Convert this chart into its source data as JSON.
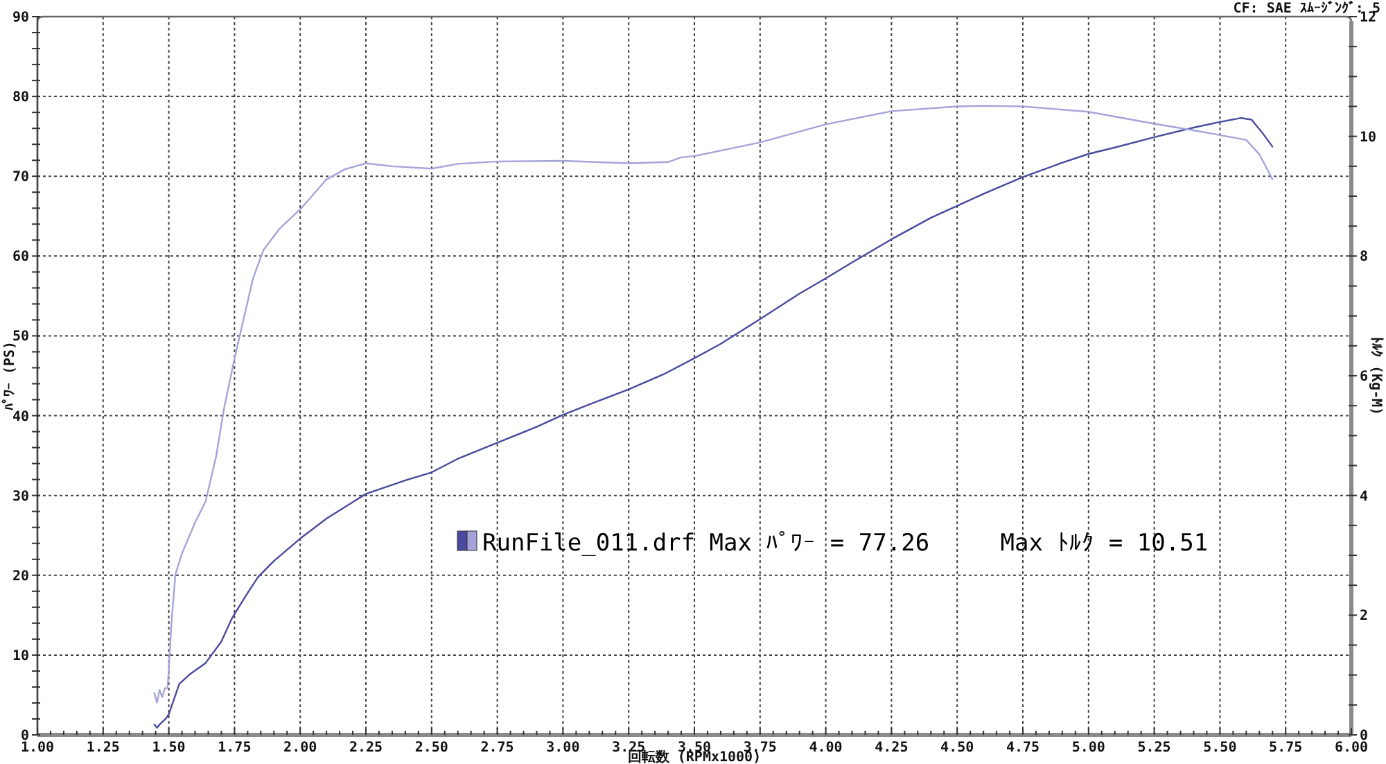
{
  "chart_data": {
    "type": "line",
    "annotations": [
      "CF: SAE ｽﾑｰｼﾞﾝｸﾞ: 5",
      "RunFile_011.drf Max ﾊﾟﾜｰ = 77.26     Max ﾄﾙｸ = 10.51"
    ],
    "xlabel": "回転数 (RPMx1000)",
    "ylabel": "ﾊﾟﾜｰ (PS)",
    "y2label": "ﾄﾙｸ (Kg-M)",
    "xlim": [
      1,
      6
    ],
    "ylim": [
      0,
      90
    ],
    "y2lim": [
      0,
      12
    ],
    "xticks": [
      {
        "value": 1,
        "label": "1.00"
      },
      {
        "value": 1.05,
        "label": null
      },
      {
        "value": 1.1,
        "label": null
      },
      {
        "value": 1.15,
        "label": null
      },
      {
        "value": 1.2,
        "label": null
      },
      {
        "value": 1.25,
        "label": "1.25"
      },
      {
        "value": 1.3,
        "label": null
      },
      {
        "value": 1.35,
        "label": null
      },
      {
        "value": 1.4,
        "label": null
      },
      {
        "value": 1.45,
        "label": null
      },
      {
        "value": 1.5,
        "label": "1.50"
      },
      {
        "value": 1.55,
        "label": null
      },
      {
        "value": 1.6,
        "label": null
      },
      {
        "value": 1.65,
        "label": null
      },
      {
        "value": 1.7,
        "label": null
      },
      {
        "value": 1.75,
        "label": "1.75"
      },
      {
        "value": 1.8,
        "label": null
      },
      {
        "value": 1.85,
        "label": null
      },
      {
        "value": 1.9,
        "label": null
      },
      {
        "value": 1.95,
        "label": null
      },
      {
        "value": 2,
        "label": "2.00"
      },
      {
        "value": 2.05,
        "label": null
      },
      {
        "value": 2.1,
        "label": null
      },
      {
        "value": 2.15,
        "label": null
      },
      {
        "value": 2.2,
        "label": null
      },
      {
        "value": 2.25,
        "label": "2.25"
      },
      {
        "value": 2.3,
        "label": null
      },
      {
        "value": 2.35,
        "label": null
      },
      {
        "value": 2.4,
        "label": null
      },
      {
        "value": 2.45,
        "label": null
      },
      {
        "value": 2.5,
        "label": "2.50"
      },
      {
        "value": 2.55,
        "label": null
      },
      {
        "value": 2.6,
        "label": null
      },
      {
        "value": 2.65,
        "label": null
      },
      {
        "value": 2.7,
        "label": null
      },
      {
        "value": 2.75,
        "label": "2.75"
      },
      {
        "value": 2.8,
        "label": null
      },
      {
        "value": 2.85,
        "label": null
      },
      {
        "value": 2.9,
        "label": null
      },
      {
        "value": 2.95,
        "label": null
      },
      {
        "value": 3,
        "label": "3.00"
      },
      {
        "value": 3.05,
        "label": null
      },
      {
        "value": 3.1,
        "label": null
      },
      {
        "value": 3.15,
        "label": null
      },
      {
        "value": 3.2,
        "label": null
      },
      {
        "value": 3.25,
        "label": "3.25"
      },
      {
        "value": 3.3,
        "label": null
      },
      {
        "value": 3.35,
        "label": null
      },
      {
        "value": 3.4,
        "label": null
      },
      {
        "value": 3.45,
        "label": null
      },
      {
        "value": 3.5,
        "label": "3.50"
      },
      {
        "value": 3.55,
        "label": null
      },
      {
        "value": 3.6,
        "label": null
      },
      {
        "value": 3.65,
        "label": null
      },
      {
        "value": 3.7,
        "label": null
      },
      {
        "value": 3.75,
        "label": "3.75"
      },
      {
        "value": 3.8,
        "label": null
      },
      {
        "value": 3.85,
        "label": null
      },
      {
        "value": 3.9,
        "label": null
      },
      {
        "value": 3.95,
        "label": null
      },
      {
        "value": 4,
        "label": "4.00"
      },
      {
        "value": 4.05,
        "label": null
      },
      {
        "value": 4.1,
        "label": null
      },
      {
        "value": 4.15,
        "label": null
      },
      {
        "value": 4.2,
        "label": null
      },
      {
        "value": 4.25,
        "label": "4.25"
      },
      {
        "value": 4.3,
        "label": null
      },
      {
        "value": 4.35,
        "label": null
      },
      {
        "value": 4.4,
        "label": null
      },
      {
        "value": 4.45,
        "label": null
      },
      {
        "value": 4.5,
        "label": "4.50"
      },
      {
        "value": 4.55,
        "label": null
      },
      {
        "value": 4.6,
        "label": null
      },
      {
        "value": 4.65,
        "label": null
      },
      {
        "value": 4.7,
        "label": null
      },
      {
        "value": 4.75,
        "label": "4.75"
      },
      {
        "value": 4.8,
        "label": null
      },
      {
        "value": 4.85,
        "label": null
      },
      {
        "value": 4.9,
        "label": null
      },
      {
        "value": 4.95,
        "label": null
      },
      {
        "value": 5,
        "label": "5.00"
      },
      {
        "value": 5.05,
        "label": null
      },
      {
        "value": 5.1,
        "label": null
      },
      {
        "value": 5.15,
        "label": null
      },
      {
        "value": 5.2,
        "label": null
      },
      {
        "value": 5.25,
        "label": "5.25"
      },
      {
        "value": 5.3,
        "label": null
      },
      {
        "value": 5.35,
        "label": null
      },
      {
        "value": 5.4,
        "label": null
      },
      {
        "value": 5.45,
        "label": null
      },
      {
        "value": 5.5,
        "label": "5.50"
      },
      {
        "value": 5.55,
        "label": null
      },
      {
        "value": 5.6,
        "label": null
      },
      {
        "value": 5.65,
        "label": null
      },
      {
        "value": 5.7,
        "label": null
      },
      {
        "value": 5.75,
        "label": "5.75"
      },
      {
        "value": 5.8,
        "label": null
      },
      {
        "value": 5.85,
        "label": null
      },
      {
        "value": 5.9,
        "label": null
      },
      {
        "value": 5.95,
        "label": null
      },
      {
        "value": 6,
        "label": "6.00"
      }
    ],
    "yticks": [
      0,
      {
        "value": 2,
        "label": null
      },
      {
        "value": 4,
        "label": null
      },
      {
        "value": 6,
        "label": null
      },
      {
        "value": 8,
        "label": null
      },
      10,
      {
        "value": 12,
        "label": null
      },
      {
        "value": 14,
        "label": null
      },
      {
        "value": 16,
        "label": null
      },
      {
        "value": 18,
        "label": null
      },
      20,
      {
        "value": 22,
        "label": null
      },
      {
        "value": 24,
        "label": null
      },
      {
        "value": 26,
        "label": null
      },
      {
        "value": 28,
        "label": null
      },
      30,
      {
        "value": 32,
        "label": null
      },
      {
        "value": 34,
        "label": null
      },
      {
        "value": 36,
        "label": null
      },
      {
        "value": 38,
        "label": null
      },
      40,
      {
        "value": 42,
        "label": null
      },
      {
        "value": 44,
        "label": null
      },
      {
        "value": 46,
        "label": null
      },
      {
        "value": 48,
        "label": null
      },
      50,
      {
        "value": 52,
        "label": null
      },
      {
        "value": 54,
        "label": null
      },
      {
        "value": 56,
        "label": null
      },
      {
        "value": 58,
        "label": null
      },
      60,
      {
        "value": 62,
        "label": null
      },
      {
        "value": 64,
        "label": null
      },
      {
        "value": 66,
        "label": null
      },
      {
        "value": 68,
        "label": null
      },
      70,
      {
        "value": 72,
        "label": null
      },
      {
        "value": 74,
        "label": null
      },
      {
        "value": 76,
        "label": null
      },
      {
        "value": 78,
        "label": null
      },
      80,
      {
        "value": 82,
        "label": null
      },
      {
        "value": 84,
        "label": null
      },
      {
        "value": 86,
        "label": null
      },
      {
        "value": 88,
        "label": null
      },
      90
    ],
    "y2ticks": [
      0,
      {
        "value": 0.5,
        "label": null
      },
      {
        "value": 1,
        "label": null
      },
      {
        "value": 1.5,
        "label": null
      },
      2,
      {
        "value": 2.5,
        "label": null
      },
      {
        "value": 3,
        "label": null
      },
      {
        "value": 3.5,
        "label": null
      },
      4,
      {
        "value": 4.5,
        "label": null
      },
      {
        "value": 5,
        "label": null
      },
      {
        "value": 5.5,
        "label": null
      },
      6,
      {
        "value": 6.5,
        "label": null
      },
      {
        "value": 7,
        "label": null
      },
      {
        "value": 7.5,
        "label": null
      },
      8,
      {
        "value": 8.5,
        "label": null
      },
      {
        "value": 9,
        "label": null
      },
      {
        "value": 9.5,
        "label": null
      },
      10,
      {
        "value": 10.5,
        "label": null
      },
      {
        "value": 11,
        "label": null
      },
      {
        "value": 11.5,
        "label": null
      },
      12
    ],
    "grid": true,
    "series": [
      {
        "color": "#4a4a9e",
        "x": [
          1.445,
          1.455,
          1.465,
          1.49,
          1.5,
          1.54,
          1.58,
          1.64,
          1.7,
          1.74,
          1.8,
          1.84,
          1.9,
          2.0,
          2.1,
          2.25,
          2.4,
          2.5,
          2.6,
          2.75,
          2.9,
          3.0,
          3.1,
          3.25,
          3.39,
          3.5,
          3.6,
          3.75,
          3.9,
          4.0,
          4.1,
          4.25,
          4.4,
          4.5,
          4.6,
          4.75,
          4.9,
          5.0,
          5.1,
          5.25,
          5.4,
          5.5,
          5.58,
          5.62,
          5.66,
          5.7
        ],
        "values": [
          1.3,
          0.9,
          1.3,
          2.1,
          2.6,
          6.4,
          7.6,
          9.0,
          11.7,
          14.6,
          17.8,
          19.8,
          21.8,
          24.6,
          27.1,
          30.2,
          31.9,
          32.9,
          34.6,
          36.6,
          38.6,
          40.1,
          41.4,
          43.3,
          45.3,
          47.2,
          49.0,
          52.1,
          55.3,
          57.2,
          59.2,
          62.1,
          64.8,
          66.3,
          67.8,
          69.9,
          71.7,
          72.8,
          73.6,
          74.9,
          76.1,
          76.8,
          77.3,
          77.1,
          75.5,
          73.7
        ]
      },
      {
        "color": "#a4a4da",
        "axis": "y2",
        "x": [
          1.445,
          1.455,
          1.465,
          1.475,
          1.485,
          1.495,
          1.5,
          1.51,
          1.525,
          1.55,
          1.6,
          1.64,
          1.68,
          1.71,
          1.75,
          1.82,
          1.86,
          1.92,
          2.0,
          2.1,
          2.17,
          2.25,
          2.35,
          2.5,
          2.6,
          2.75,
          3.0,
          3.25,
          3.4,
          3.45,
          3.5,
          3.75,
          4.0,
          4.25,
          4.5,
          4.6,
          4.75,
          5.0,
          5.25,
          5.4,
          5.5,
          5.6,
          5.65,
          5.7
        ],
        "values": [
          0.7,
          0.54,
          0.75,
          0.63,
          0.78,
          0.78,
          1.1,
          1.86,
          2.68,
          3.03,
          3.55,
          3.9,
          4.65,
          5.45,
          6.29,
          7.62,
          8.1,
          8.45,
          8.78,
          9.28,
          9.45,
          9.55,
          9.5,
          9.46,
          9.54,
          9.58,
          9.59,
          9.55,
          9.57,
          9.65,
          9.67,
          9.9,
          10.2,
          10.42,
          10.5,
          10.51,
          10.5,
          10.41,
          10.21,
          10.1,
          10.02,
          9.94,
          9.7,
          9.28
        ]
      }
    ]
  }
}
